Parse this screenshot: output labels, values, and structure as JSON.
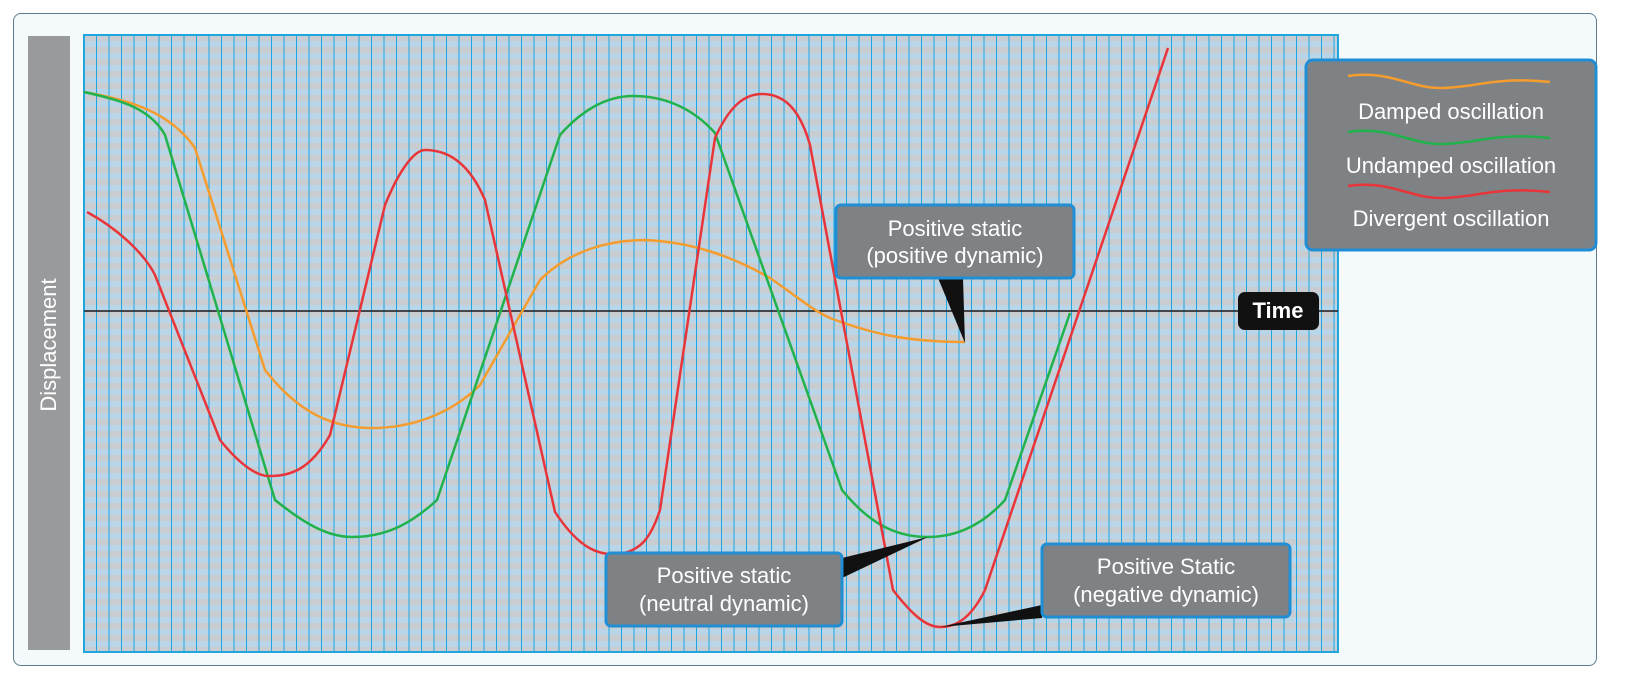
{
  "axes": {
    "y_label": "Displacement",
    "x_label": "Time"
  },
  "legend": {
    "items": [
      {
        "label": "Damped oscillation",
        "color": "#f49c2e"
      },
      {
        "label": "Undamped oscillation",
        "color": "#22b24c"
      },
      {
        "label": "Divergent oscillation",
        "color": "#e8353a"
      }
    ]
  },
  "callouts": {
    "positive_dynamic": {
      "line1": "Positive static",
      "line2": "(positive dynamic)"
    },
    "neutral_dynamic": {
      "line1": "Positive static",
      "line2": "(neutral dynamic)"
    },
    "negative_dynamic": {
      "line1": "Positive Static",
      "line2": "(negative dynamic)"
    }
  },
  "colors": {
    "grid_background": "#c8d7e1",
    "grid_lines": "#1fa6df",
    "callout_fill": "#7f8285",
    "callout_border": "#1f8ed4"
  }
}
